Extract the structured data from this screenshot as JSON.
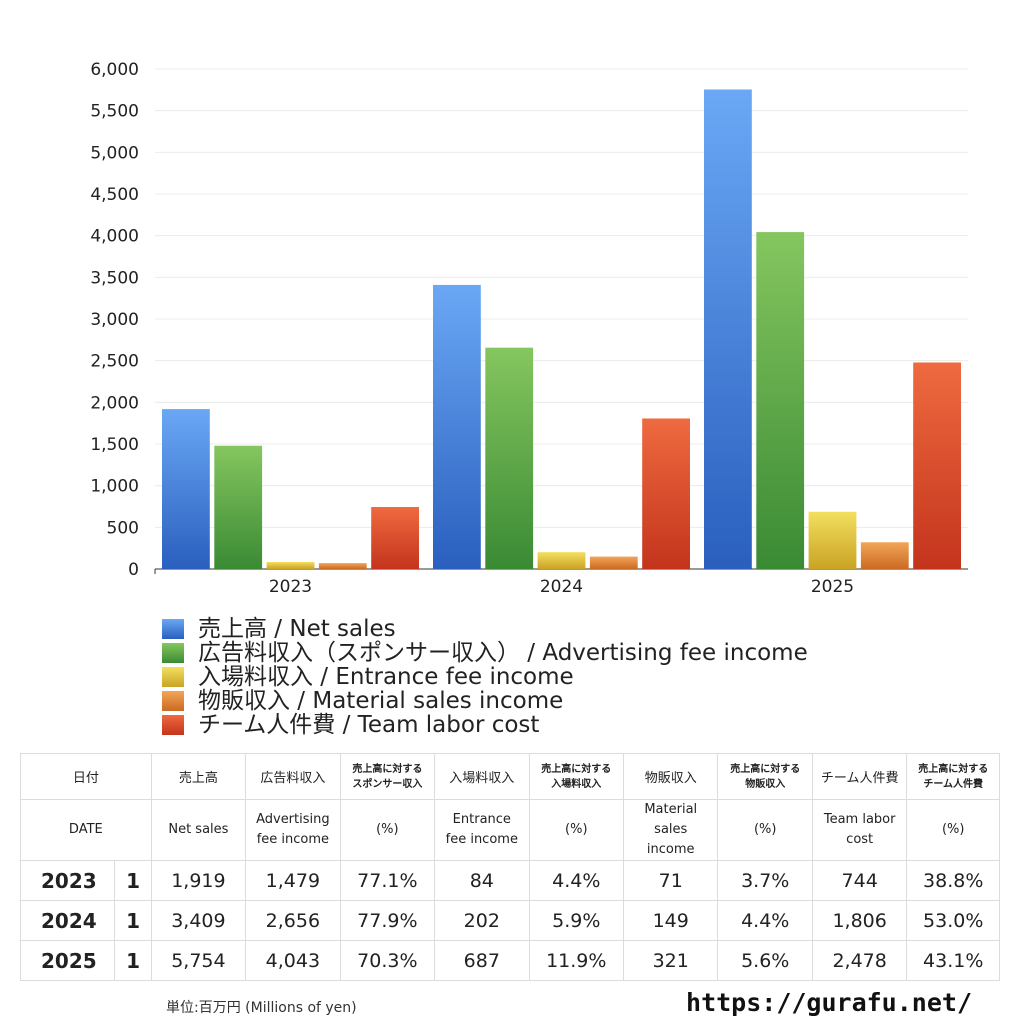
{
  "chart_data": {
    "type": "bar",
    "categories": [
      "2023",
      "2024",
      "2025"
    ],
    "ylim": [
      0,
      6000
    ],
    "yticks": [
      "0",
      "500",
      "1,000",
      "1,500",
      "2,000",
      "2,500",
      "3,000",
      "3,500",
      "4,000",
      "4,500",
      "5,000",
      "5,500",
      "6,000"
    ],
    "series": [
      {
        "name": "売上高 / Net sales",
        "values": [
          1919,
          3409,
          5754
        ],
        "color_top": "#6aa8f5",
        "color_bottom": "#2a5fbe"
      },
      {
        "name": "広告料収入（スポンサー収入） / Advertising fee income",
        "values": [
          1479,
          2656,
          4043
        ],
        "color_top": "#85c65f",
        "color_bottom": "#3a8a34"
      },
      {
        "name": "入場料収入 / Entrance fee income",
        "values": [
          84,
          202,
          687
        ],
        "color_top": "#f3df5f",
        "color_bottom": "#c9a324"
      },
      {
        "name": "物販収入 / Material sales income",
        "values": [
          71,
          149,
          321
        ],
        "color_top": "#f2a559",
        "color_bottom": "#cc6a22"
      },
      {
        "name": "チーム人件費 / Team labor cost",
        "values": [
          744,
          1806,
          2478
        ],
        "color_top": "#ee6a3f",
        "color_bottom": "#c4341d"
      }
    ]
  },
  "table": {
    "header_jp": [
      "日付",
      "売上高",
      "広告料収入",
      "売上高に対する|スポンサー収入",
      "入場料収入",
      "売上高に対する|入場料収入",
      "物販収入",
      "売上高に対する|物販収入",
      "チーム人件費",
      "売上高に対する|チーム人件費"
    ],
    "header_en": [
      "DATE",
      "Net sales",
      "Advertising|fee income",
      "(%)",
      "Entrance|fee income",
      "(%)",
      "Material|sales|income",
      "(%)",
      "Team labor|cost",
      "(%)"
    ],
    "rows": [
      {
        "year": "2023",
        "q": "1",
        "cells": [
          "1,919",
          "1,479",
          "77.1%",
          "84",
          "4.4%",
          "71",
          "3.7%",
          "744",
          "38.8%"
        ]
      },
      {
        "year": "2024",
        "q": "1",
        "cells": [
          "3,409",
          "2,656",
          "77.9%",
          "202",
          "5.9%",
          "149",
          "4.4%",
          "1,806",
          "53.0%"
        ]
      },
      {
        "year": "2025",
        "q": "1",
        "cells": [
          "5,754",
          "4,043",
          "70.3%",
          "687",
          "11.9%",
          "321",
          "5.6%",
          "2,478",
          "43.1%"
        ]
      }
    ]
  },
  "footer": {
    "unit": "単位:百万円 (Millions of yen)",
    "url": "https://gurafu.net/"
  }
}
